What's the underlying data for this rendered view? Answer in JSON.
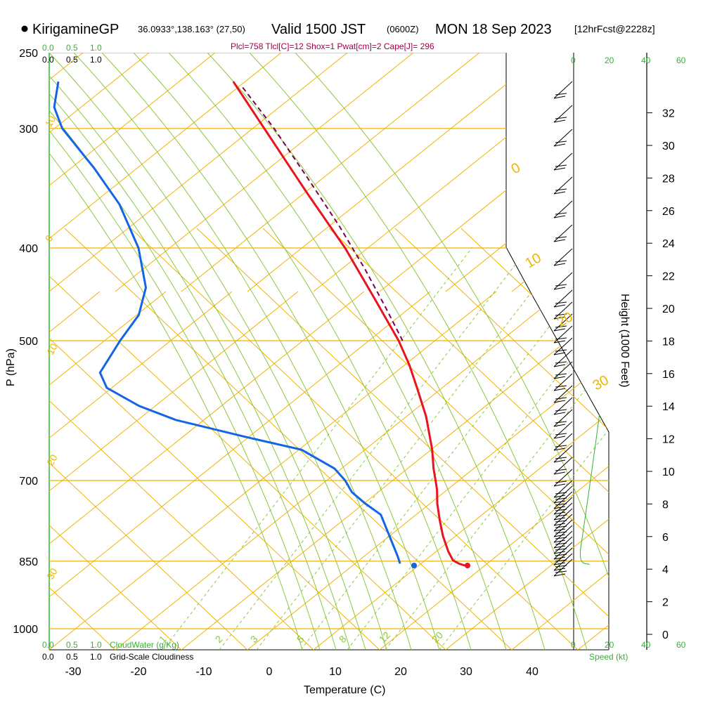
{
  "header": {
    "station": "KirigamineGP",
    "coords": "36.0933°,138.163° (27,50)",
    "valid_main": "Valid 1500 JST",
    "valid_z": "(0600Z)",
    "date": "MON 18 Sep 2023",
    "forecast": "[12hrFcst@2228z]",
    "indices": "Plcl=758 Tlcl[C]=12 Shox=1 Pwat[cm]=2 Cape[J]= 296"
  },
  "colors": {
    "isobar": "#f0b400",
    "dry_adiabat": "#f0b400",
    "moist_adiabat": "#8cc83c",
    "mixing_ratio": "#8cc83c",
    "temperature": "#e8141e",
    "dewpoint": "#1464e6",
    "parcel": "#780050",
    "green_text": "#2db82d"
  },
  "chart_data": {
    "type": "line",
    "subtype": "skew-T log-P",
    "xlabel": "Temperature (C)",
    "ylabel": "P (hPa)",
    "right_label": "Height (1000 Feet)",
    "x_ticks": [
      -30,
      -20,
      -10,
      0,
      10,
      20,
      30,
      40
    ],
    "p_levels": [
      250,
      300,
      400,
      500,
      700,
      850,
      1000
    ],
    "height_ticks": [
      0,
      2,
      4,
      6,
      8,
      10,
      12,
      14,
      16,
      18,
      20,
      22,
      24,
      26,
      28,
      30,
      32
    ],
    "dry_adiabat_labels": [
      "10",
      "0",
      "-10",
      "-20",
      "-30",
      "0",
      "10",
      "20",
      "30"
    ],
    "mixing_ratio_labels": [
      "1",
      "2",
      "3",
      "5",
      "8",
      "12",
      "20"
    ],
    "cloud_scale_green": [
      "0.0",
      "0.5",
      "1.0"
    ],
    "cloud_scale_black": [
      "0.0",
      "0.5",
      "1.0"
    ],
    "cloudwater_label": "CloudWater (g/Kg)",
    "cloudiness_label": "Grid-Scale Cloudiness",
    "speed_ticks": [
      "0",
      "20",
      "40",
      "60"
    ],
    "speed_label": "Speed (kt)",
    "temperature": [
      {
        "p": 859,
        "t": 29.5
      },
      {
        "p": 855,
        "t": 28.5
      },
      {
        "p": 848,
        "t": 27.5
      },
      {
        "p": 830,
        "t": 26.5
      },
      {
        "p": 800,
        "t": 25.2
      },
      {
        "p": 770,
        "t": 24.2
      },
      {
        "p": 740,
        "t": 23.3
      },
      {
        "p": 715,
        "t": 22.8
      },
      {
        "p": 700,
        "t": 22.3
      },
      {
        "p": 680,
        "t": 21.6
      },
      {
        "p": 650,
        "t": 20.8
      },
      {
        "p": 600,
        "t": 18.8
      },
      {
        "p": 560,
        "t": 16.5
      },
      {
        "p": 530,
        "t": 14.6
      },
      {
        "p": 500,
        "t": 12.2
      },
      {
        "p": 450,
        "t": 7.0
      },
      {
        "p": 400,
        "t": 1.1
      },
      {
        "p": 350,
        "t": -6.5
      },
      {
        "p": 300,
        "t": -15.0
      },
      {
        "p": 268,
        "t": -21.2
      }
    ],
    "dewpoint": [
      {
        "p": 855,
        "t": 19.6
      },
      {
        "p": 840,
        "t": 19.0
      },
      {
        "p": 800,
        "t": 17.1
      },
      {
        "p": 760,
        "t": 15.1
      },
      {
        "p": 740,
        "t": 12.4
      },
      {
        "p": 720,
        "t": 10.0
      },
      {
        "p": 700,
        "t": 8.6
      },
      {
        "p": 680,
        "t": 6.6
      },
      {
        "p": 650,
        "t": 1.0
      },
      {
        "p": 630,
        "t": -8.0
      },
      {
        "p": 605,
        "t": -19.0
      },
      {
        "p": 585,
        "t": -25.0
      },
      {
        "p": 560,
        "t": -30.5
      },
      {
        "p": 540,
        "t": -32.0
      },
      {
        "p": 500,
        "t": -30.0
      },
      {
        "p": 470,
        "t": -28.0
      },
      {
        "p": 440,
        "t": -27.8
      },
      {
        "p": 400,
        "t": -30.2
      },
      {
        "p": 360,
        "t": -34.5
      },
      {
        "p": 330,
        "t": -39.5
      },
      {
        "p": 300,
        "t": -45.6
      },
      {
        "p": 285,
        "t": -47.5
      },
      {
        "p": 268,
        "t": -47.7
      }
    ],
    "parcel": [
      {
        "p": 500,
        "t": 12.8
      },
      {
        "p": 460,
        "t": 9.0
      },
      {
        "p": 420,
        "t": 4.7
      },
      {
        "p": 380,
        "t": -0.4
      },
      {
        "p": 340,
        "t": -6.5
      },
      {
        "p": 300,
        "t": -13.5
      },
      {
        "p": 270,
        "t": -20.0
      }
    ],
    "surface_temperature": 29.5,
    "surface_dewpoint": 21.6
  }
}
